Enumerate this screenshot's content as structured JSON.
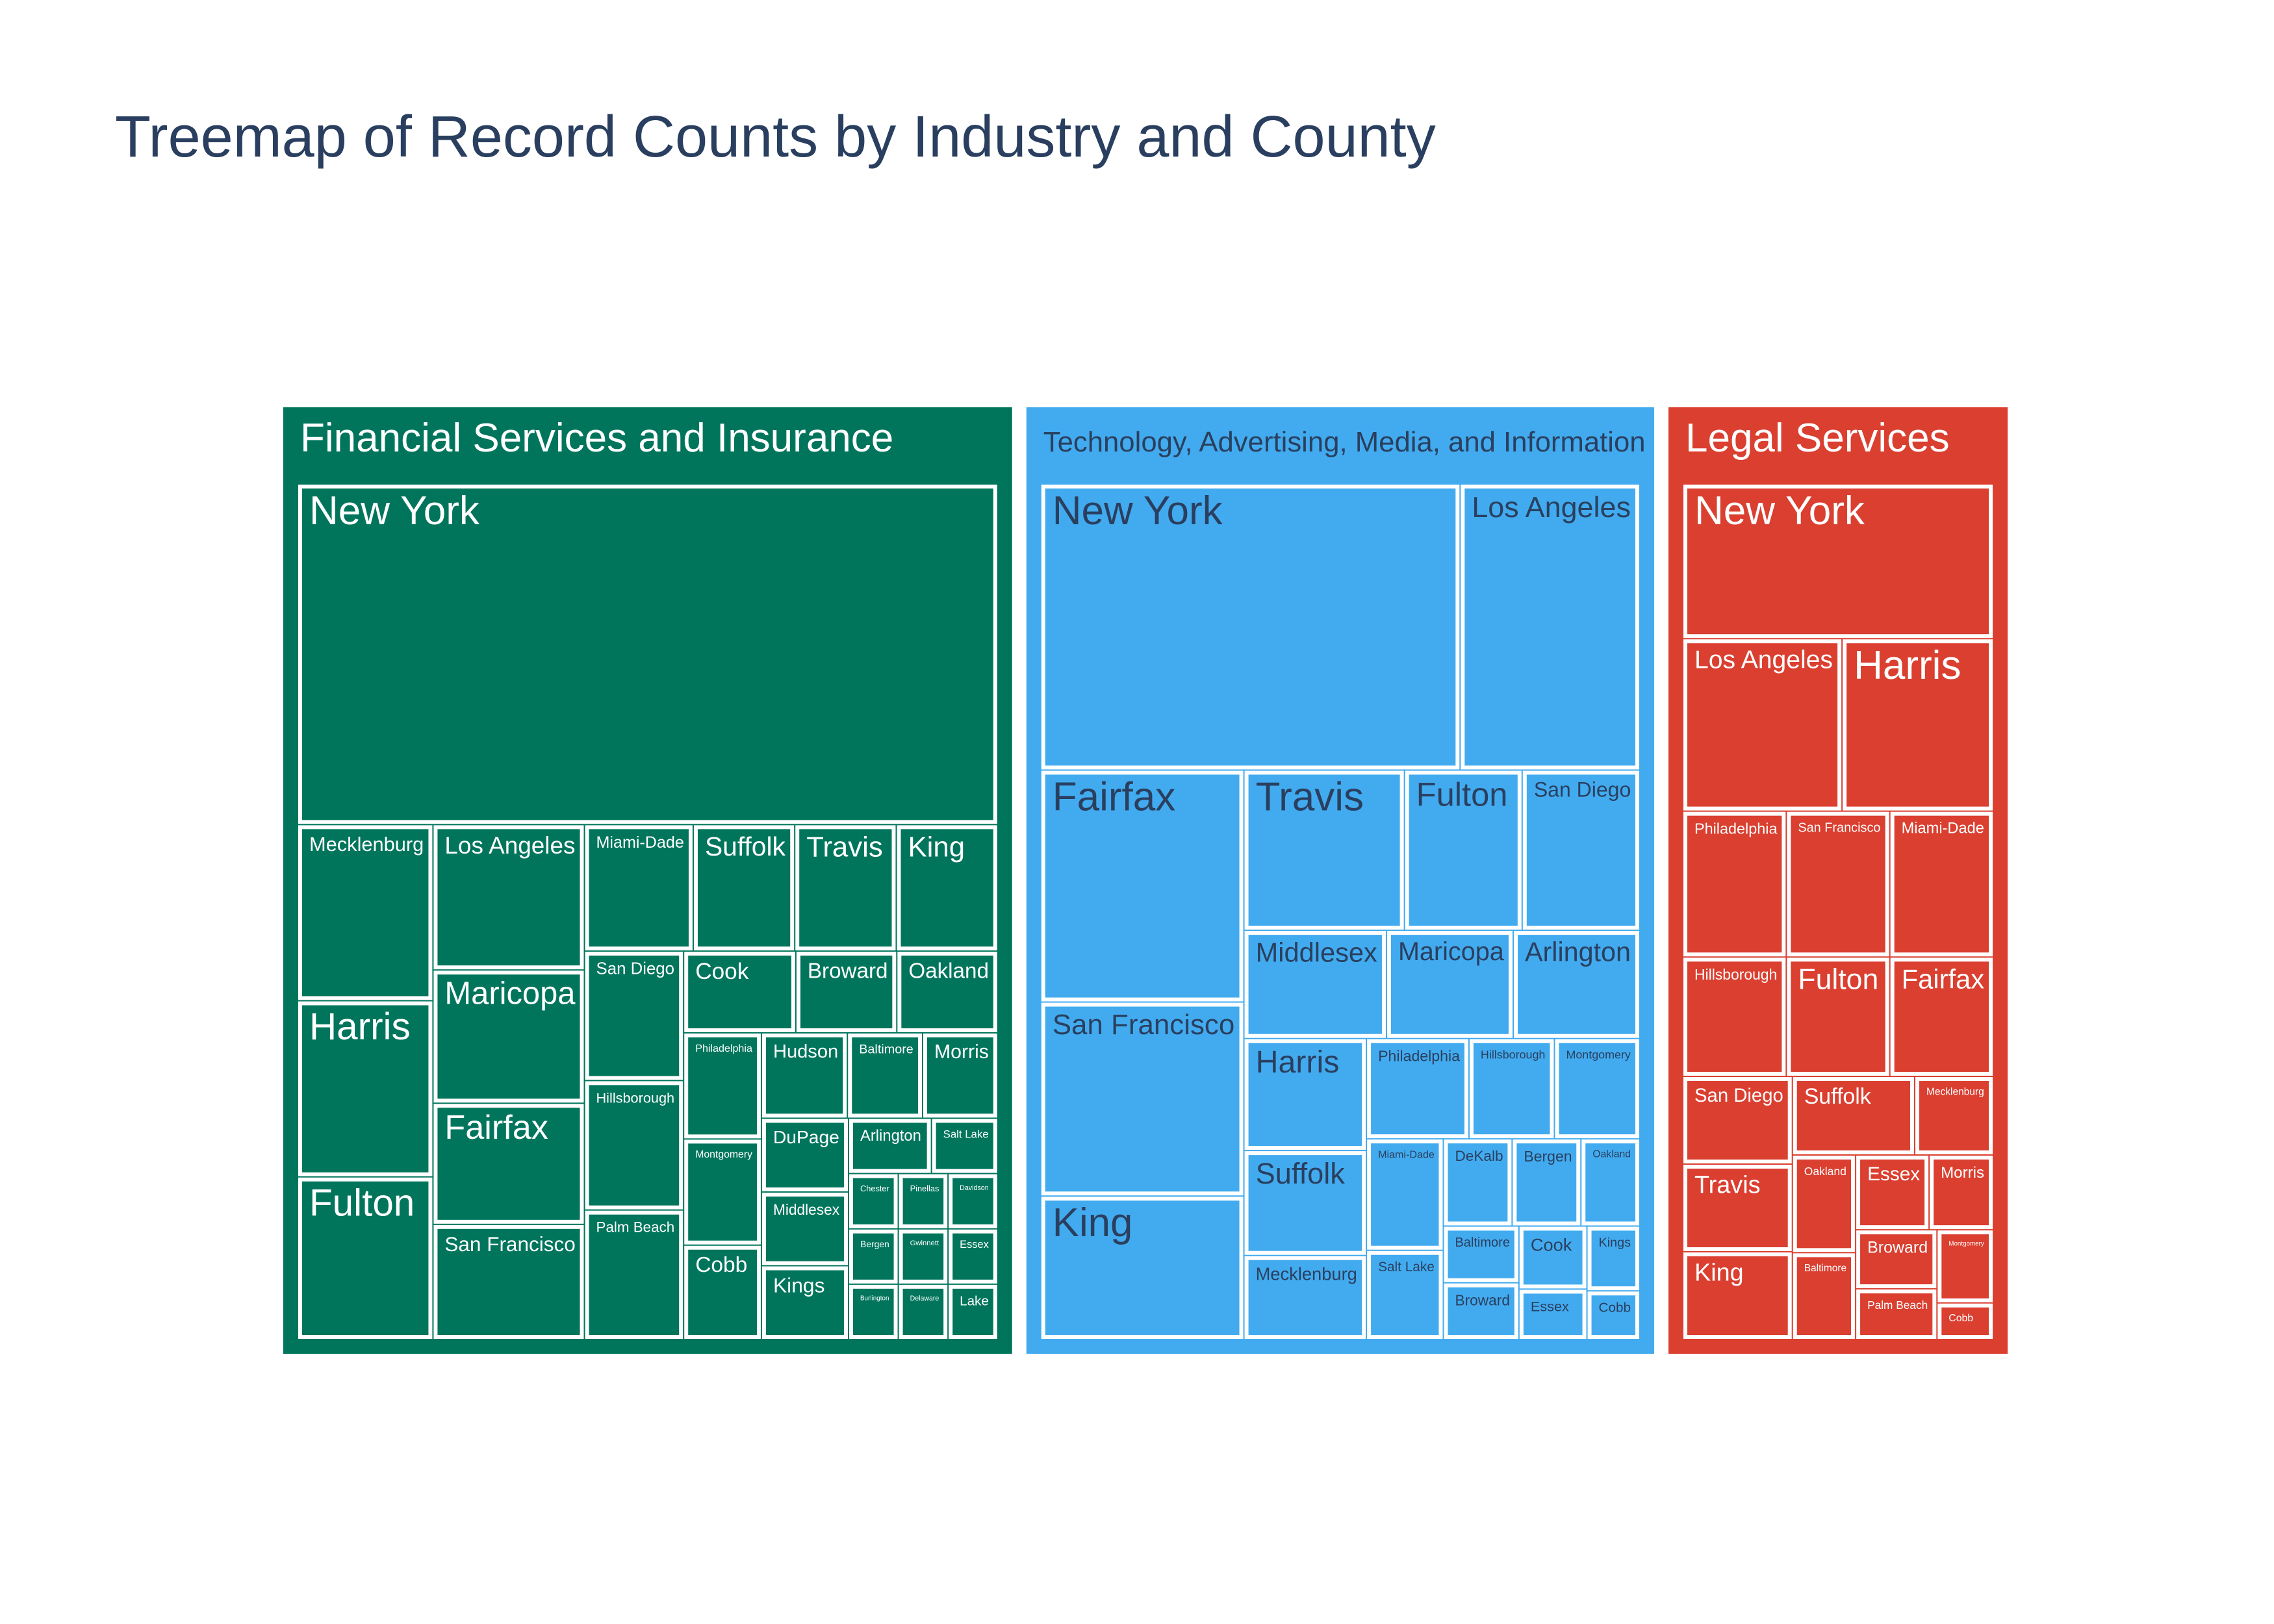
{
  "chart_data": {
    "type": "treemap",
    "title": "Treemap of Record Counts by Industry and County",
    "xlabel": "",
    "ylabel": "",
    "colors": {
      "Financial Services and Insurance": "#00755c",
      "Technology, Advertising, Media, and Information": "#42abef",
      "Legal Services": "#da3f30"
    },
    "text_colors": {
      "Financial Services and Insurance": "#ffffff",
      "Technology, Advertising, Media, and Information": "#2a3f5f",
      "Legal Services": "#ffffff"
    },
    "industries": [
      {
        "name": "Financial Services and Insurance",
        "total": 1010,
        "counties": [
          {
            "name": "New York",
            "value": 260
          },
          {
            "name": "Fulton",
            "value": 24
          },
          {
            "name": "Los Angeles",
            "value": 24
          },
          {
            "name": "Maricopa",
            "value": 22
          },
          {
            "name": "Mecklenburg",
            "value": 26
          },
          {
            "name": "Harris",
            "value": 26
          },
          {
            "name": "Fairfax",
            "value": 20
          },
          {
            "name": "San Francisco",
            "value": 19
          },
          {
            "name": "Miami-Dade",
            "value": 15
          },
          {
            "name": "Suffolk",
            "value": 14
          },
          {
            "name": "Travis",
            "value": 14
          },
          {
            "name": "King",
            "value": 14
          },
          {
            "name": "Cook",
            "value": 10
          },
          {
            "name": "San Diego",
            "value": 14
          },
          {
            "name": "Hillsborough",
            "value": 14
          },
          {
            "name": "Palm Beach",
            "value": 14
          },
          {
            "name": "Broward",
            "value": 9
          },
          {
            "name": "Oakland",
            "value": 9
          },
          {
            "name": "Philadelphia",
            "value": 9
          },
          {
            "name": "Montgomery",
            "value": 9
          },
          {
            "name": "Cobb",
            "value": 8
          },
          {
            "name": "Hudson",
            "value": 8
          },
          {
            "name": "Baltimore",
            "value": 7
          },
          {
            "name": "Morris",
            "value": 7
          },
          {
            "name": "DuPage",
            "value": 7
          },
          {
            "name": "Middlesex",
            "value": 7
          },
          {
            "name": "Kings",
            "value": 7
          },
          {
            "name": "Arlington",
            "value": 5
          },
          {
            "name": "Salt Lake",
            "value": 4
          },
          {
            "name": "Chester",
            "value": 3
          },
          {
            "name": "Pinellas",
            "value": 3
          },
          {
            "name": "Davidson",
            "value": 3
          },
          {
            "name": "Bergen",
            "value": 3
          },
          {
            "name": "Burlington",
            "value": 3
          },
          {
            "name": "Gwinnett",
            "value": 3
          },
          {
            "name": "Essex",
            "value": 3
          },
          {
            "name": "Delaware",
            "value": 3
          },
          {
            "name": "Lake",
            "value": 3
          }
        ]
      },
      {
        "name": "Technology, Advertising, Media, and Information",
        "total": 870,
        "counties": [
          {
            "name": "New York",
            "value": 140
          },
          {
            "name": "Los Angeles",
            "value": 60
          },
          {
            "name": "Fairfax",
            "value": 55
          },
          {
            "name": "San Francisco",
            "value": 46
          },
          {
            "name": "King",
            "value": 34
          },
          {
            "name": "Travis",
            "value": 30
          },
          {
            "name": "Fulton",
            "value": 22
          },
          {
            "name": "San Diego",
            "value": 22
          },
          {
            "name": "Middlesex",
            "value": 18
          },
          {
            "name": "Maricopa",
            "value": 16
          },
          {
            "name": "Arlington",
            "value": 16
          },
          {
            "name": "Harris",
            "value": 16
          },
          {
            "name": "Suffolk",
            "value": 15
          },
          {
            "name": "Hillsborough",
            "value": 10
          },
          {
            "name": "Mecklenburg",
            "value": 12
          },
          {
            "name": "Philadelphia",
            "value": 12
          },
          {
            "name": "Montgomery",
            "value": 10
          },
          {
            "name": "Miami-Dade",
            "value": 10
          },
          {
            "name": "Salt Lake",
            "value": 8
          },
          {
            "name": "DeKalb",
            "value": 7
          },
          {
            "name": "Bergen",
            "value": 7
          },
          {
            "name": "Oakland",
            "value": 6
          },
          {
            "name": "Baltimore",
            "value": 5
          },
          {
            "name": "Broward",
            "value": 5
          },
          {
            "name": "Cook",
            "value": 5
          },
          {
            "name": "Essex",
            "value": 4
          },
          {
            "name": "Kings",
            "value": 4
          },
          {
            "name": "Cobb",
            "value": 3
          }
        ]
      },
      {
        "name": "Legal Services",
        "total": 470,
        "counties": [
          {
            "name": "New York",
            "value": 70
          },
          {
            "name": "Los Angeles",
            "value": 40
          },
          {
            "name": "Harris",
            "value": 38
          },
          {
            "name": "Philadelphia",
            "value": 22
          },
          {
            "name": "San Francisco",
            "value": 22
          },
          {
            "name": "Miami-Dade",
            "value": 22
          },
          {
            "name": "Hillsborough",
            "value": 18
          },
          {
            "name": "Fulton",
            "value": 18
          },
          {
            "name": "Fairfax",
            "value": 18
          },
          {
            "name": "San Diego",
            "value": 14
          },
          {
            "name": "Travis",
            "value": 14
          },
          {
            "name": "King",
            "value": 14
          },
          {
            "name": "Suffolk",
            "value": 14
          },
          {
            "name": "Mecklenburg",
            "value": 9
          },
          {
            "name": "Oakland",
            "value": 9
          },
          {
            "name": "Baltimore",
            "value": 8
          },
          {
            "name": "Morris",
            "value": 7
          },
          {
            "name": "Palm Beach",
            "value": 6
          },
          {
            "name": "Essex",
            "value": 8
          },
          {
            "name": "Broward",
            "value": 7
          },
          {
            "name": "Montgomery",
            "value": 6
          },
          {
            "name": "Cobb",
            "value": 3
          }
        ]
      }
    ]
  }
}
